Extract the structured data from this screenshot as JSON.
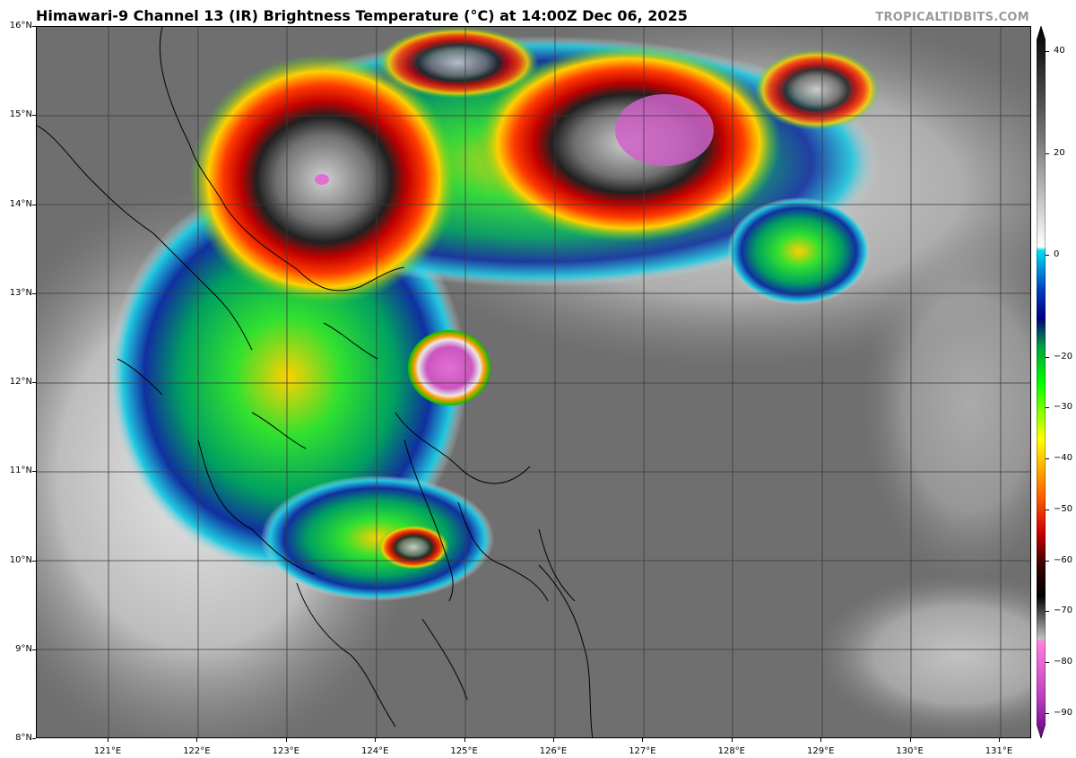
{
  "header": {
    "title": "Himawari-9 Channel 13 (IR) Brightness Temperature (°C) at 14:00Z Dec 06, 2025",
    "brand": "TROPICALTIDBITS.COM"
  },
  "map": {
    "lat_labels": [
      "16°N",
      "15°N",
      "14°N",
      "13°N",
      "12°N",
      "11°N",
      "10°N",
      "9°N",
      "8°N"
    ],
    "lon_labels": [
      "121°E",
      "122°E",
      "123°E",
      "124°E",
      "125°E",
      "126°E",
      "127°E",
      "128°E",
      "129°E",
      "130°E",
      "131°E"
    ],
    "colors": {
      "background": "#6f6f6f",
      "grid": "#3a3a3a",
      "coast": "#000000"
    }
  },
  "colorbar": {
    "labels": [
      "40",
      "20",
      "0",
      "−20",
      "−30",
      "−40",
      "−50",
      "−60",
      "−70",
      "−80",
      "−90"
    ],
    "values": [
      40,
      20,
      0,
      -20,
      -30,
      -40,
      -50,
      -60,
      -70,
      -80,
      -90
    ],
    "range": [
      -95,
      45
    ]
  }
}
